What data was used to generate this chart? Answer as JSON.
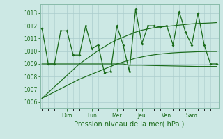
{
  "xlabel": "Pression niveau de la mer( hPa )",
  "background_color": "#cce8e4",
  "grid_color": "#aacccc",
  "line_color": "#1a6b1a",
  "ylim": [
    1005.5,
    1013.7
  ],
  "yticks": [
    1006,
    1007,
    1008,
    1009,
    1010,
    1011,
    1012,
    1013
  ],
  "day_labels": [
    "Dim",
    "Lun",
    "Mer",
    "Jeu",
    "Ven",
    "Sam"
  ],
  "day_positions": [
    4,
    8,
    12,
    16,
    20,
    24
  ],
  "xlim": [
    -0.3,
    28.3
  ],
  "x_points": [
    0,
    1,
    2,
    3,
    4,
    5,
    6,
    7,
    8,
    9,
    10,
    11,
    12,
    13,
    14,
    15,
    16,
    17,
    18,
    19,
    20,
    21,
    22,
    23,
    24,
    25,
    26,
    27,
    28
  ],
  "line1": [
    1011.8,
    1009.0,
    1009.0,
    1011.6,
    1011.6,
    1009.7,
    1009.7,
    1012.0,
    1010.2,
    1010.5,
    1008.3,
    1008.4,
    1012.0,
    1010.5,
    1008.4,
    1013.3,
    1010.6,
    1012.0,
    1012.0,
    1011.9,
    1012.0,
    1010.5,
    1013.1,
    1011.5,
    1010.5,
    1013.0,
    1010.5,
    1009.0,
    1009.0
  ],
  "line_trend_hi": [
    1006.3,
    1006.75,
    1007.2,
    1007.65,
    1008.1,
    1008.55,
    1009.0,
    1009.35,
    1009.7,
    1010.05,
    1010.35,
    1010.65,
    1010.9,
    1011.1,
    1011.3,
    1011.5,
    1011.65,
    1011.75,
    1011.85,
    1011.9,
    1011.95,
    1012.0,
    1012.05,
    1012.1,
    1012.15,
    1012.18,
    1012.2,
    1012.22,
    1012.25
  ],
  "line_trend_lo": [
    1006.3,
    1006.55,
    1006.8,
    1007.05,
    1007.3,
    1007.55,
    1007.8,
    1008.0,
    1008.2,
    1008.4,
    1008.6,
    1008.8,
    1009.0,
    1009.15,
    1009.3,
    1009.45,
    1009.55,
    1009.65,
    1009.72,
    1009.78,
    1009.83,
    1009.87,
    1009.9,
    1009.92,
    1009.94,
    1009.96,
    1009.97,
    1009.98,
    1009.98
  ],
  "line_flat": [
    1009.0,
    1009.0,
    1009.0,
    1009.0,
    1009.0,
    1009.0,
    1009.0,
    1009.0,
    1009.0,
    1009.0,
    1009.0,
    1009.0,
    1009.0,
    1009.0,
    1008.9,
    1008.9,
    1008.9,
    1008.88,
    1008.87,
    1008.86,
    1008.85,
    1008.84,
    1008.83,
    1008.82,
    1008.81,
    1008.8,
    1008.8,
    1008.8,
    1008.8
  ]
}
